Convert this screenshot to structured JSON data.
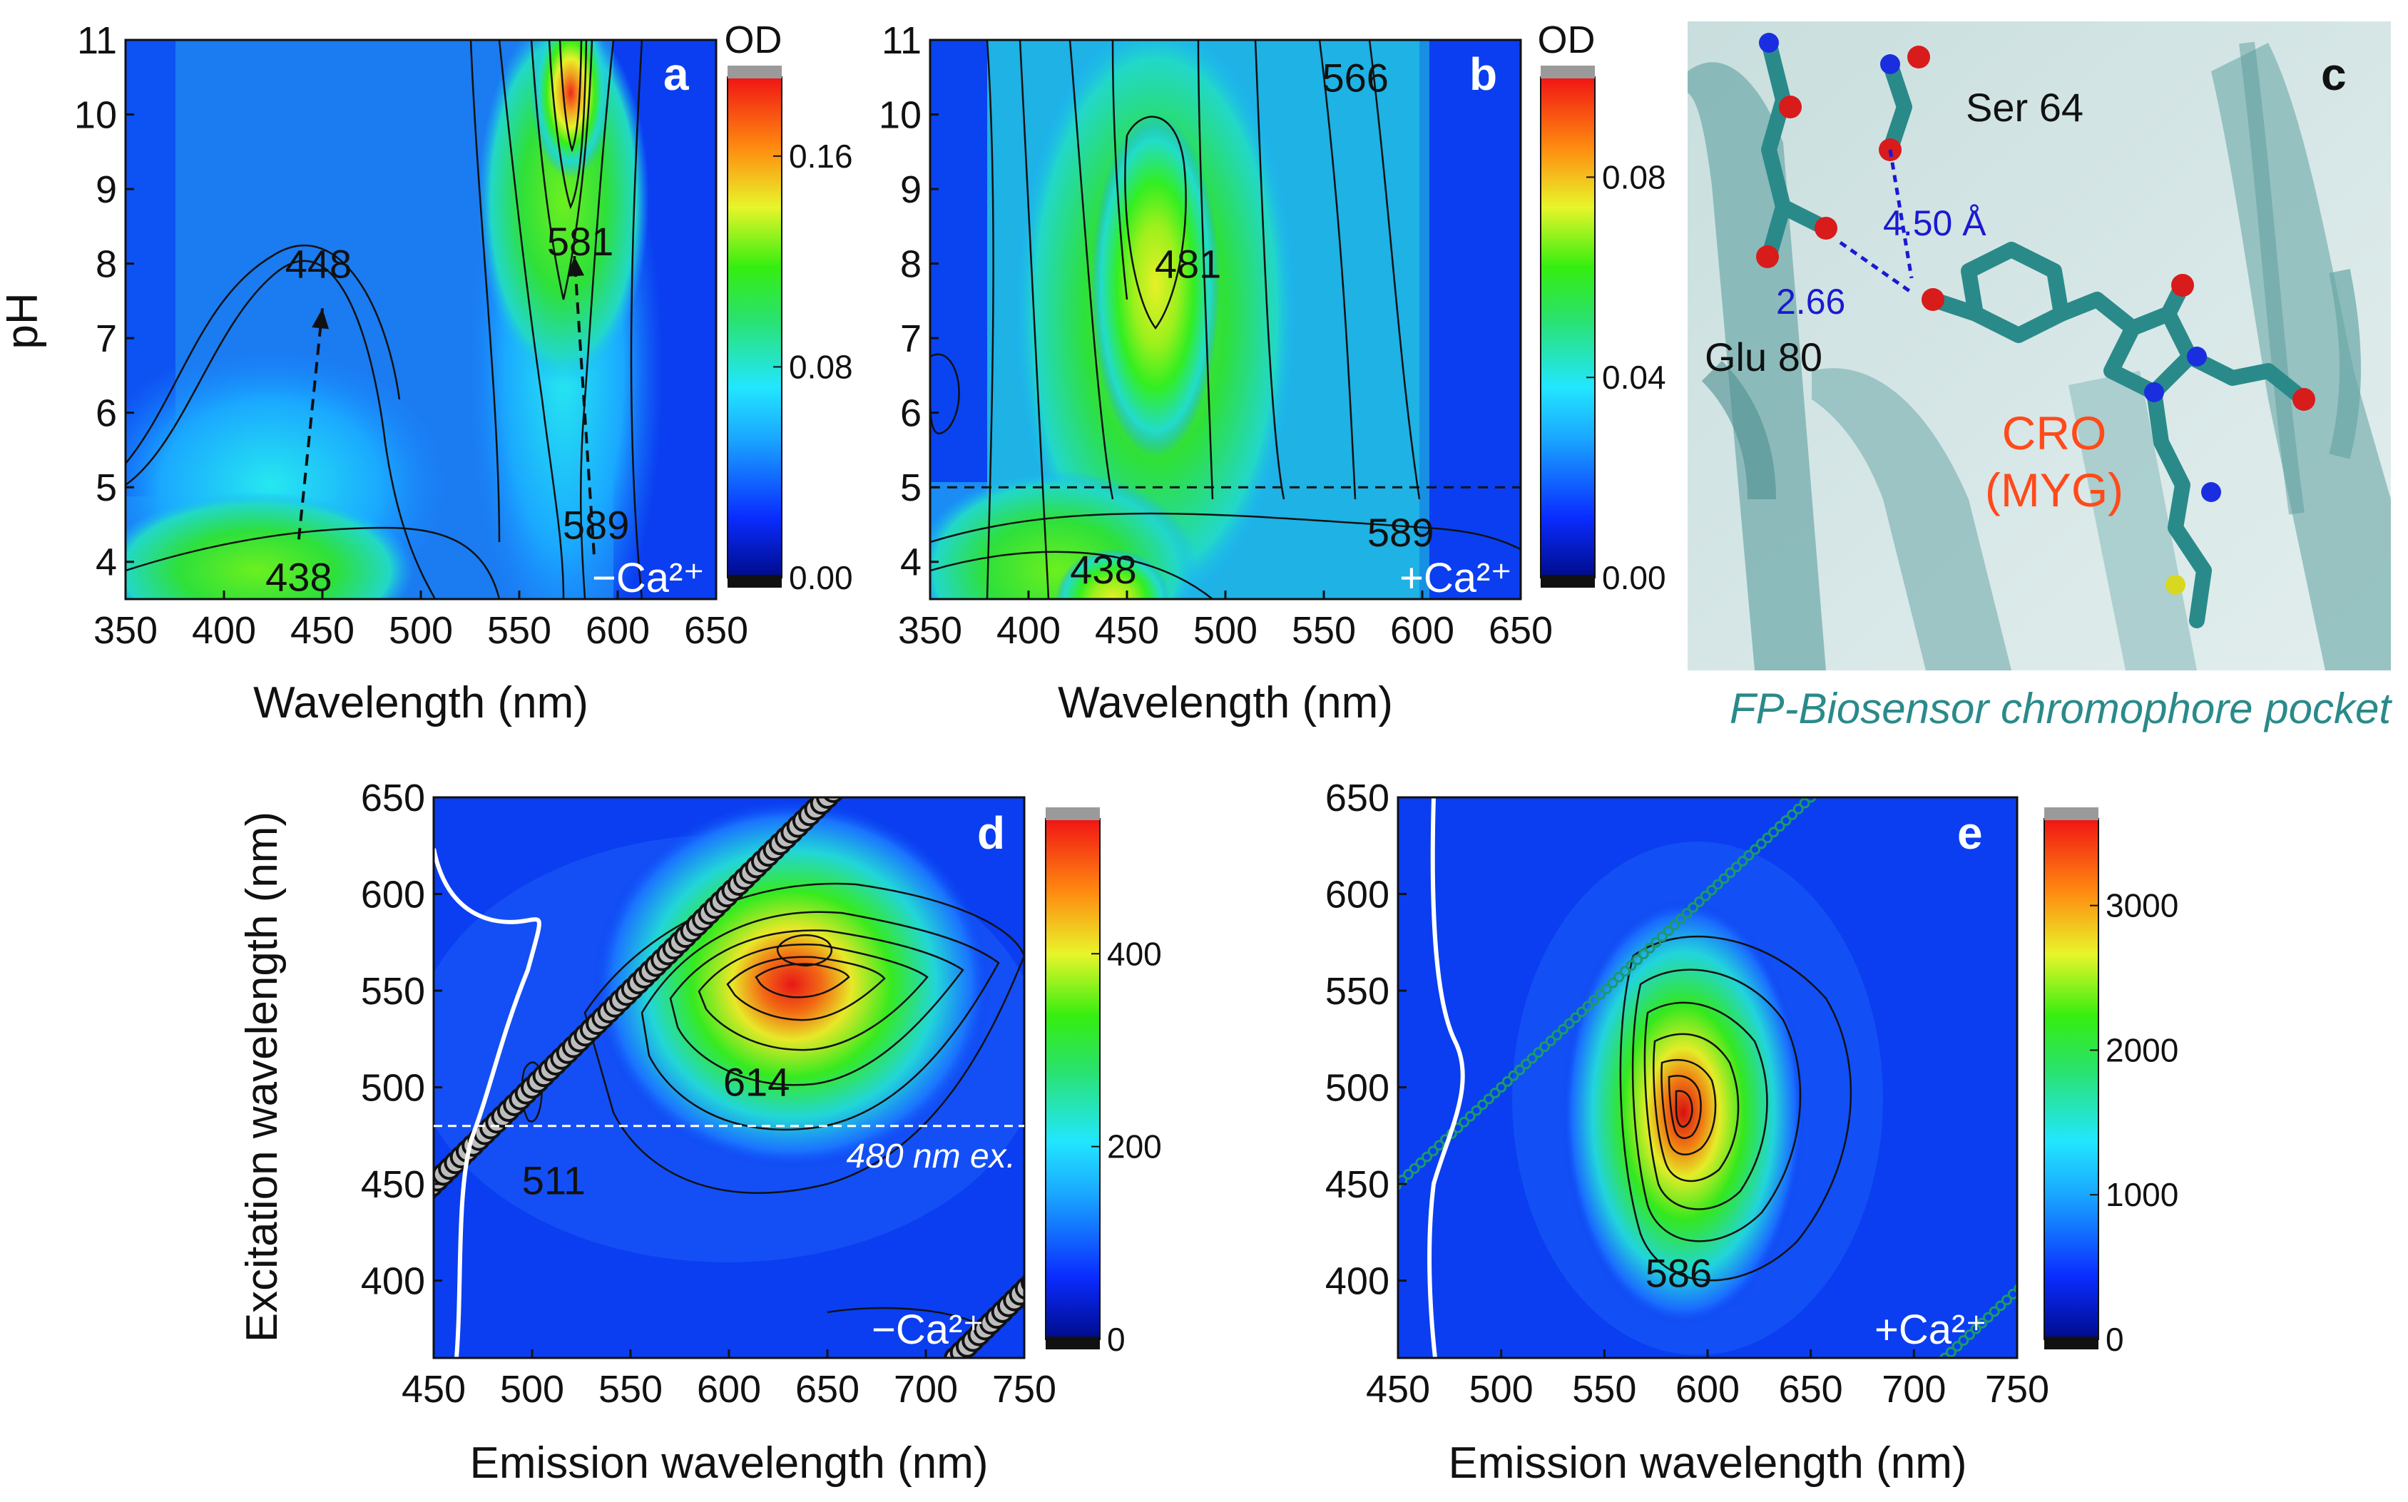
{
  "chart_data": [
    {
      "panel": "a",
      "type": "heatmap",
      "title": "",
      "xlabel": "Wavelength (nm)",
      "ylabel": "pH",
      "xlim": [
        350,
        650
      ],
      "ylim": [
        3.5,
        11
      ],
      "xticks": [
        350,
        400,
        450,
        500,
        550,
        600,
        650
      ],
      "yticks": [
        4,
        5,
        6,
        7,
        8,
        9,
        10,
        11
      ],
      "colorbar": {
        "title": "OD",
        "ticks": [
          0.0,
          0.08,
          0.16
        ],
        "tick_labels": [
          "0.00",
          "0.08",
          "0.16"
        ],
        "max": 0.19
      },
      "condition": "−Ca²⁺",
      "peaks": [
        {
          "label": "448",
          "x": 448,
          "y": 8.0
        },
        {
          "label": "438",
          "x": 438,
          "y": 3.8
        },
        {
          "label": "581",
          "x": 581,
          "y": 8.3
        },
        {
          "label": "589",
          "x": 589,
          "y": 4.5
        }
      ],
      "arrows": [
        {
          "from": [
            438,
            4.3
          ],
          "to": [
            450,
            7.4
          ]
        },
        {
          "from": [
            588,
            4.1
          ],
          "to": [
            578,
            8.1
          ]
        }
      ]
    },
    {
      "panel": "b",
      "type": "heatmap",
      "title": "",
      "xlabel": "Wavelength (nm)",
      "ylabel": "",
      "xlim": [
        350,
        650
      ],
      "ylim": [
        3.5,
        11
      ],
      "xticks": [
        350,
        400,
        450,
        500,
        550,
        600,
        650
      ],
      "yticks": [
        4,
        5,
        6,
        7,
        8,
        9,
        10,
        11
      ],
      "colorbar": {
        "title": "OD",
        "ticks": [
          0.0,
          0.04,
          0.08
        ],
        "tick_labels": [
          "0.00",
          "0.04",
          "0.08"
        ],
        "max": 0.1
      },
      "condition": "+Ca²⁺",
      "reference_line": {
        "y": 5
      },
      "peaks": [
        {
          "label": "481",
          "x": 481,
          "y": 8.0
        },
        {
          "label": "438",
          "x": 438,
          "y": 3.9
        },
        {
          "label": "566",
          "x": 566,
          "y": 10.5
        },
        {
          "label": "589",
          "x": 589,
          "y": 4.4
        }
      ]
    },
    {
      "panel": "d",
      "type": "heatmap",
      "title": "",
      "xlabel": "Emission wavelength (nm)",
      "ylabel": "Excitation wavelength (nm)",
      "xlim": [
        450,
        750
      ],
      "ylim": [
        360,
        650
      ],
      "xticks": [
        450,
        500,
        550,
        600,
        650,
        700,
        750
      ],
      "yticks": [
        400,
        450,
        500,
        550,
        600,
        650
      ],
      "colorbar": {
        "title": "",
        "ticks": [
          0,
          200,
          400
        ],
        "tick_labels": [
          "0",
          "200",
          "400"
        ],
        "max": 540
      },
      "condition": "−Ca²⁺",
      "reference_line": {
        "y": 480,
        "label": "480 nm ex."
      },
      "peaks": [
        {
          "label": "614",
          "x": 614,
          "y": 503,
          "color": "#d81b3c"
        },
        {
          "label": "511",
          "x": 511,
          "y": 452,
          "color": "#1e9e1e"
        }
      ]
    },
    {
      "panel": "e",
      "type": "heatmap",
      "title": "",
      "xlabel": "Emission wavelength (nm)",
      "ylabel": "",
      "xlim": [
        450,
        750
      ],
      "ylim": [
        360,
        650
      ],
      "xticks": [
        450,
        500,
        550,
        600,
        650,
        700,
        750
      ],
      "yticks": [
        400,
        450,
        500,
        550,
        600,
        650
      ],
      "colorbar": {
        "title": "",
        "ticks": [
          0,
          1000,
          2000,
          3000
        ],
        "tick_labels": [
          "0",
          "1000",
          "2000",
          "3000"
        ],
        "max": 3600
      },
      "condition": "+Ca²⁺",
      "peaks": [
        {
          "label": "586",
          "x": 586,
          "y": 404,
          "color": "#d81b3c"
        }
      ]
    }
  ],
  "structure_panel": {
    "panel": "c",
    "residues": [
      "Ser 64",
      "Glu 80",
      "CRO",
      "(MYG)"
    ],
    "distances": [
      "4.50 Å",
      "2.66"
    ],
    "caption": "FP-Biosensor chromophore pocket"
  },
  "colors": {
    "background_blue": "#0a3ef0",
    "teal": "#2a8a8a",
    "cro_label": "#ff4a1a",
    "hbond": "#1a1ad0",
    "peak_red": "#d81b3c",
    "peak_green": "#1e9e1e"
  }
}
